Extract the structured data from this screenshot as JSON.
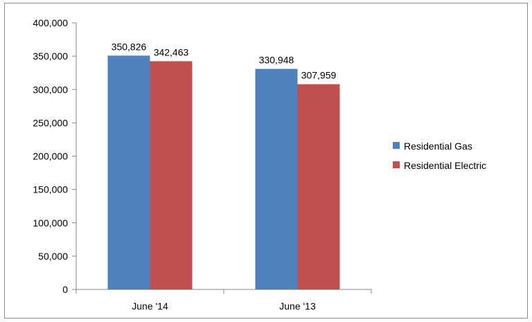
{
  "chart_data": {
    "type": "bar",
    "categories": [
      "June '14",
      "June '13"
    ],
    "series": [
      {
        "name": "Residential Gas",
        "values": [
          350826,
          330948
        ],
        "color": "#4f81bd"
      },
      {
        "name": "Residential Electric",
        "values": [
          342463,
          307959
        ],
        "color": "#c0504d"
      }
    ],
    "data_labels": [
      [
        "350,826",
        "330,948"
      ],
      [
        "342,463",
        "307,959"
      ]
    ],
    "ytick_labels": [
      "0",
      "50,000",
      "100,000",
      "150,000",
      "200,000",
      "250,000",
      "300,000",
      "350,000",
      "400,000"
    ],
    "ylim": [
      0,
      400000
    ],
    "grid": false,
    "legend_position": "right"
  }
}
